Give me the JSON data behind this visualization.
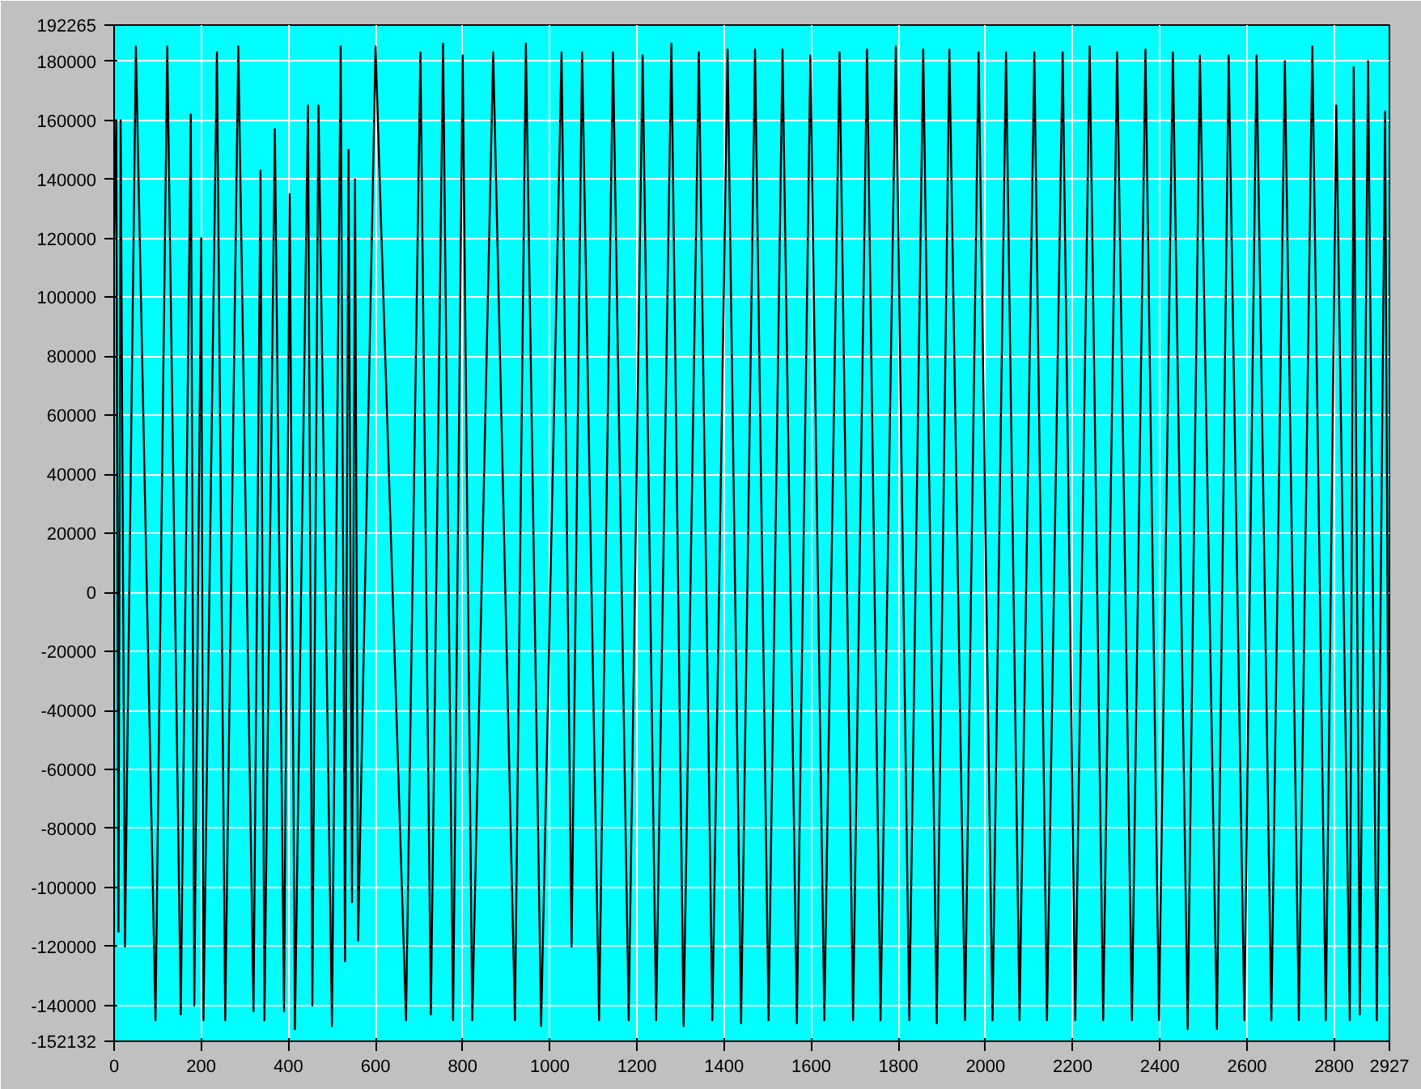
{
  "chart_data": {
    "type": "line",
    "grid": true,
    "xlim": [
      0,
      2927
    ],
    "ylim": [
      -152132,
      192265
    ],
    "xticks": [
      0,
      200,
      400,
      600,
      800,
      1000,
      1200,
      1400,
      1600,
      1800,
      2000,
      2200,
      2400,
      2600,
      2800,
      2927
    ],
    "yticks": [
      -152132,
      -140000,
      -120000,
      -100000,
      -80000,
      -60000,
      -40000,
      -20000,
      0,
      20000,
      40000,
      60000,
      80000,
      100000,
      120000,
      140000,
      160000,
      180000,
      192265
    ],
    "series": [
      {
        "color": "#000000",
        "x": [
          0,
          5,
          10,
          15,
          25,
          50,
          95,
          122,
          153,
          176,
          184,
          200,
          205,
          236,
          255,
          285,
          320,
          336,
          345,
          369,
          390,
          403,
          415,
          445,
          455,
          469,
          500,
          520,
          530,
          538,
          546,
          553,
          560,
          600,
          670,
          703,
          727,
          755,
          778,
          800,
          822,
          870,
          920,
          945,
          980,
          1027,
          1050,
          1074,
          1113,
          1145,
          1181,
          1213,
          1244,
          1279,
          1307,
          1342,
          1373,
          1408,
          1439,
          1471,
          1502,
          1534,
          1567,
          1598,
          1630,
          1665,
          1696,
          1728,
          1759,
          1794,
          1825,
          1857,
          1888,
          1917,
          1953,
          1984,
          2016,
          2047,
          2078,
          2112,
          2141,
          2177,
          2206,
          2239,
          2270,
          2302,
          2336,
          2367,
          2398,
          2430,
          2464,
          2492,
          2531,
          2558,
          2594,
          2622,
          2656,
          2687,
          2719,
          2750,
          2781,
          2805,
          2836,
          2845,
          2859,
          2878,
          2898,
          2917,
          2927
        ],
        "values": [
          120000,
          160000,
          -115000,
          160000,
          -120000,
          185000,
          -145000,
          185000,
          -143000,
          162000,
          -140000,
          120000,
          -145000,
          183000,
          -145000,
          185000,
          -142000,
          143000,
          -145000,
          157000,
          -142000,
          135000,
          -148000,
          165000,
          -140000,
          165000,
          -147000,
          185000,
          -125000,
          150000,
          -105000,
          140000,
          -118000,
          185000,
          -145000,
          183000,
          -143000,
          186000,
          -145000,
          182000,
          -145000,
          183000,
          -145000,
          186000,
          -147000,
          183000,
          -120000,
          183000,
          -145000,
          183000,
          -145000,
          182000,
          -145000,
          186000,
          -147000,
          183000,
          -145000,
          184000,
          -146000,
          184000,
          -145000,
          184000,
          -146000,
          182000,
          -145000,
          183000,
          -145000,
          184000,
          -145000,
          185000,
          -145000,
          184000,
          -146000,
          184000,
          -145000,
          183000,
          -145000,
          183000,
          -145000,
          183000,
          -145000,
          183000,
          -145000,
          185000,
          -145000,
          183000,
          -145000,
          184000,
          -145000,
          183000,
          -148000,
          182000,
          -148000,
          182000,
          -145000,
          182000,
          -145000,
          180000,
          -145000,
          185000,
          -145000,
          165000,
          -145000,
          178000,
          -143000,
          180000,
          -145000,
          163000,
          -130000
        ]
      }
    ]
  }
}
